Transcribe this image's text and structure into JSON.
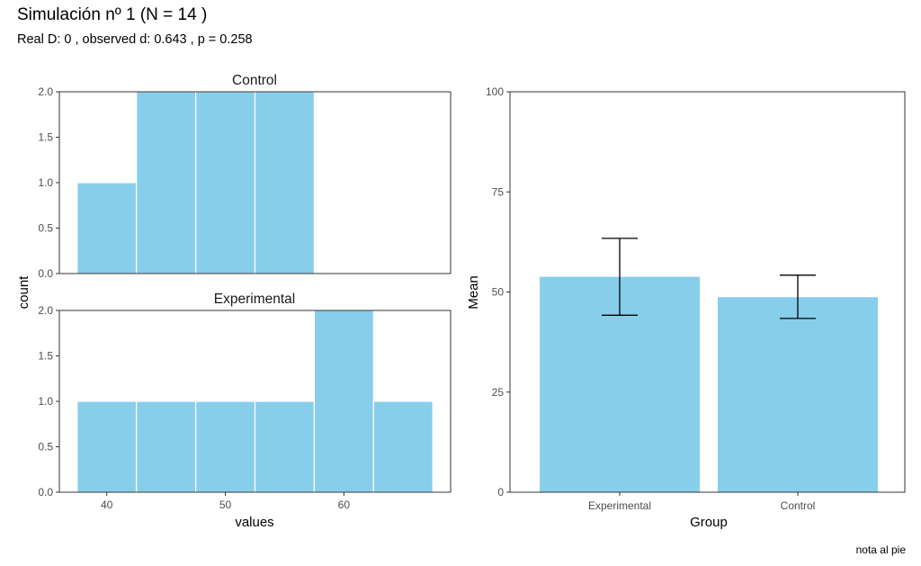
{
  "title": "Simulación nº  1 (N =  14 )",
  "subtitle": "Real D:  0 , observed d:  0.643 , p =  0.258",
  "caption": "nota al pie",
  "colors": {
    "fill": "#87CEEB",
    "bar_outline": "#ffffff",
    "panel_border": "#333333",
    "errorbar": "#000000"
  },
  "chart_data": [
    {
      "type": "bar",
      "subtype": "histogram",
      "facets": [
        "Control",
        "Experimental"
      ],
      "xlabel": "values",
      "ylabel": "count",
      "xlim": [
        36,
        69
      ],
      "ylim": [
        0,
        2
      ],
      "x_ticks": [
        40,
        50,
        60
      ],
      "y_ticks": [
        0.0,
        0.5,
        1.0,
        1.5,
        2.0
      ],
      "y_tick_labels": [
        "0.0",
        "0.5",
        "1.0",
        "1.5",
        "2.0"
      ],
      "binwidth": 5,
      "series": [
        {
          "name": "Control",
          "bins": [
            {
              "start": 37.5,
              "end": 42.5,
              "count": 1
            },
            {
              "start": 42.5,
              "end": 47.5,
              "count": 2
            },
            {
              "start": 47.5,
              "end": 52.5,
              "count": 2
            },
            {
              "start": 52.5,
              "end": 57.5,
              "count": 2
            }
          ]
        },
        {
          "name": "Experimental",
          "bins": [
            {
              "start": 37.5,
              "end": 42.5,
              "count": 1
            },
            {
              "start": 42.5,
              "end": 47.5,
              "count": 1
            },
            {
              "start": 47.5,
              "end": 52.5,
              "count": 1
            },
            {
              "start": 52.5,
              "end": 57.5,
              "count": 1
            },
            {
              "start": 57.5,
              "end": 62.5,
              "count": 2
            },
            {
              "start": 62.5,
              "end": 67.5,
              "count": 1
            }
          ]
        }
      ]
    },
    {
      "type": "bar",
      "subtype": "bar-with-errorbars",
      "categories": [
        "Experimental",
        "Control"
      ],
      "values": [
        53.8,
        48.7
      ],
      "error_lower": [
        44.2,
        43.4
      ],
      "error_upper": [
        63.4,
        54.2
      ],
      "xlabel": "Group",
      "ylabel": "Mean",
      "ylim": [
        0,
        100
      ],
      "y_ticks": [
        0,
        25,
        50,
        75,
        100
      ]
    }
  ]
}
